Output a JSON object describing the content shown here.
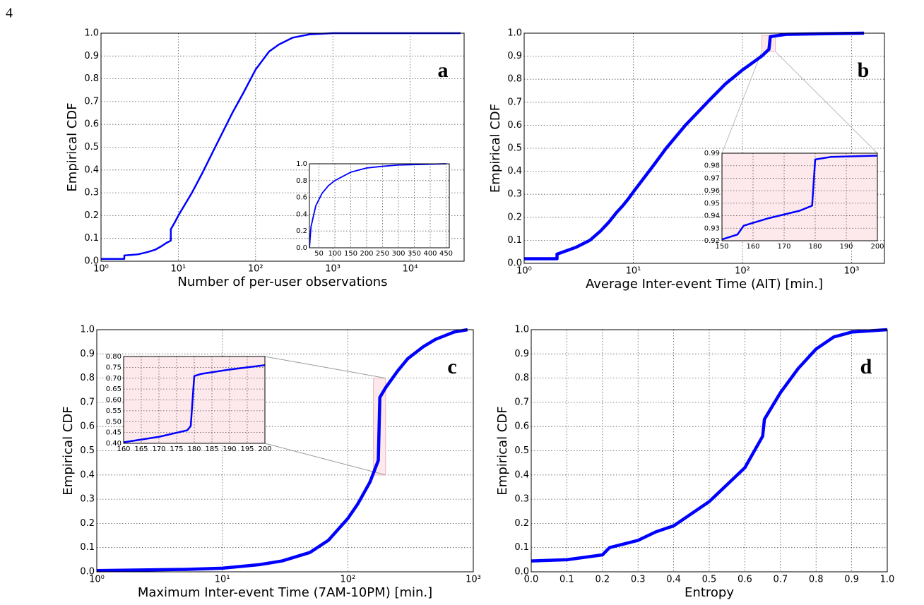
{
  "page_number": "4",
  "chart_data": [
    {
      "type": "line",
      "panel_label": "a",
      "x_label": "Number of per-user observations",
      "y_label": "Empirical CDF",
      "x_log": true,
      "grid": true,
      "xlim": [
        1,
        50000
      ],
      "xticks": [
        {
          "value": 1,
          "label": "10⁰"
        },
        {
          "value": 10,
          "label": "10¹"
        },
        {
          "value": 100,
          "label": "10²"
        },
        {
          "value": 1000,
          "label": "10³"
        },
        {
          "value": 10000,
          "label": "10⁴"
        }
      ],
      "ylim": [
        0,
        1
      ],
      "yticks": [
        {
          "value": 0,
          "label": "0.0"
        },
        0.1,
        0.2,
        0.3,
        0.4,
        0.5,
        0.6,
        0.7,
        0.8,
        0.9,
        {
          "value": 1,
          "label": "1.0"
        }
      ],
      "series": [
        {
          "color": "#0000ff",
          "x": [
            1,
            2,
            2,
            3,
            4,
            5,
            6,
            7,
            8,
            8,
            9,
            10,
            15,
            20,
            30,
            50,
            70,
            100,
            150,
            200,
            300,
            500,
            1000,
            45000
          ],
          "values": [
            0.01,
            0.01,
            0.025,
            0.03,
            0.04,
            0.05,
            0.065,
            0.08,
            0.09,
            0.14,
            0.17,
            0.2,
            0.3,
            0.38,
            0.5,
            0.65,
            0.74,
            0.84,
            0.92,
            0.95,
            0.98,
            0.995,
            1.0,
            1.0
          ]
        }
      ],
      "inset": {
        "type": "line",
        "x_log": false,
        "grid": true,
        "background": "#ffffff",
        "xlim": [
          20,
          460
        ],
        "xticks": [
          50,
          100,
          150,
          200,
          250,
          300,
          350,
          400,
          450
        ],
        "ylim": [
          0,
          1
        ],
        "yticks": [
          {
            "value": 0,
            "label": "0.0"
          },
          0.2,
          0.4,
          0.6,
          0.8,
          {
            "value": 1,
            "label": "1.0"
          }
        ],
        "series": [
          {
            "color": "#0000ff",
            "x": [
              20,
              25,
              40,
              60,
              80,
              100,
              150,
              200,
              250,
              300,
              350,
              450
            ],
            "values": [
              0.0,
              0.25,
              0.5,
              0.65,
              0.74,
              0.8,
              0.9,
              0.95,
              0.97,
              0.985,
              0.99,
              1.0
            ]
          }
        ]
      }
    },
    {
      "type": "line",
      "panel_label": "b",
      "x_label": "Average Inter-event Time (AIT) [min.]",
      "y_label": "Empirical CDF",
      "x_log": true,
      "grid": true,
      "xlim": [
        1,
        2000
      ],
      "xticks": [
        {
          "value": 1,
          "label": "10⁰"
        },
        {
          "value": 10,
          "label": "10¹"
        },
        {
          "value": 100,
          "label": "10²"
        },
        {
          "value": 1000,
          "label": "10³"
        }
      ],
      "ylim": [
        0,
        1
      ],
      "yticks": [
        {
          "value": 0,
          "label": "0.0"
        },
        0.1,
        0.2,
        0.3,
        0.4,
        0.5,
        0.6,
        0.7,
        0.8,
        0.9,
        {
          "value": 1,
          "label": "1.0"
        }
      ],
      "series": [
        {
          "color": "#0000ff",
          "x": [
            1,
            2,
            2,
            3,
            4,
            5,
            6,
            7,
            8,
            9,
            10,
            15,
            20,
            30,
            50,
            70,
            100,
            150,
            175,
            180,
            250,
            1300
          ],
          "values": [
            0.02,
            0.02,
            0.04,
            0.07,
            0.1,
            0.14,
            0.18,
            0.22,
            0.25,
            0.28,
            0.31,
            0.42,
            0.5,
            0.6,
            0.71,
            0.78,
            0.84,
            0.9,
            0.93,
            0.985,
            0.995,
            1.0
          ]
        }
      ],
      "inset": {
        "type": "line",
        "x_log": false,
        "grid": true,
        "background": "#fde8ec",
        "xlim": [
          150,
          200
        ],
        "xticks": [
          150,
          160,
          170,
          180,
          190,
          200
        ],
        "ylim": [
          0.92,
          0.99
        ],
        "yticks": [
          0.92,
          0.93,
          0.94,
          0.95,
          0.96,
          0.97,
          0.98,
          0.99
        ],
        "series": [
          {
            "color": "#0000ff",
            "x": [
              150,
              155,
              157,
              165,
              175,
              179,
              180,
              185,
              200
            ],
            "values": [
              0.921,
              0.925,
              0.932,
              0.938,
              0.944,
              0.948,
              0.985,
              0.987,
              0.988
            ]
          }
        ]
      }
    },
    {
      "type": "line",
      "panel_label": "c",
      "x_label": "Maximum Inter-event Time (7AM-10PM) [min.]",
      "y_label": "Empirical CDF",
      "x_log": true,
      "grid": true,
      "xlim": [
        1,
        1000
      ],
      "xticks": [
        {
          "value": 1,
          "label": "10⁰"
        },
        {
          "value": 10,
          "label": "10¹"
        },
        {
          "value": 100,
          "label": "10²"
        },
        {
          "value": 1000,
          "label": "10³"
        }
      ],
      "ylim": [
        0,
        1
      ],
      "yticks": [
        {
          "value": 0,
          "label": "0.0"
        },
        0.1,
        0.2,
        0.3,
        0.4,
        0.5,
        0.6,
        0.7,
        0.8,
        0.9,
        {
          "value": 1,
          "label": "1.0"
        }
      ],
      "series": [
        {
          "color": "#0000ff",
          "x": [
            1,
            5,
            10,
            20,
            30,
            50,
            70,
            100,
            120,
            150,
            175,
            180,
            200,
            250,
            300,
            400,
            500,
            700,
            900
          ],
          "values": [
            0.005,
            0.01,
            0.015,
            0.03,
            0.045,
            0.08,
            0.13,
            0.22,
            0.28,
            0.37,
            0.46,
            0.72,
            0.76,
            0.83,
            0.88,
            0.93,
            0.96,
            0.99,
            1.0
          ]
        }
      ],
      "inset": {
        "type": "line",
        "x_log": false,
        "grid": true,
        "background": "#fde8ec",
        "xlim": [
          160,
          200
        ],
        "xticks": [
          160,
          165,
          170,
          175,
          180,
          185,
          190,
          195,
          200
        ],
        "ylim": [
          0.4,
          0.8
        ],
        "yticks": [
          {
            "value": 0.4,
            "label": "0.40"
          },
          0.45,
          {
            "value": 0.5,
            "label": "0.50"
          },
          0.55,
          {
            "value": 0.6,
            "label": "0.60"
          },
          0.65,
          {
            "value": 0.7,
            "label": "0.70"
          },
          0.75,
          {
            "value": 0.8,
            "label": "0.80"
          }
        ],
        "series": [
          {
            "color": "#0000ff",
            "x": [
              160,
              170,
              178,
              179,
              180,
              182,
              190,
              200
            ],
            "values": [
              0.405,
              0.43,
              0.46,
              0.48,
              0.71,
              0.72,
              0.74,
              0.76
            ]
          }
        ]
      }
    },
    {
      "type": "line",
      "panel_label": "d",
      "x_label": "Entropy",
      "y_label": "Empirical CDF",
      "x_log": false,
      "grid": true,
      "xlim": [
        0,
        1
      ],
      "xticks": [
        {
          "value": 0,
          "label": "0.0"
        },
        0.1,
        0.2,
        0.3,
        0.4,
        0.5,
        0.6,
        0.7,
        0.8,
        0.9,
        {
          "value": 1,
          "label": "1.0"
        }
      ],
      "ylim": [
        0,
        1
      ],
      "yticks": [
        {
          "value": 0,
          "label": "0.0"
        },
        0.1,
        0.2,
        0.3,
        0.4,
        0.5,
        0.6,
        0.7,
        0.8,
        0.9,
        {
          "value": 1,
          "label": "1.0"
        }
      ],
      "series": [
        {
          "color": "#0000ff",
          "x": [
            0,
            0.1,
            0.2,
            0.22,
            0.3,
            0.35,
            0.4,
            0.5,
            0.6,
            0.65,
            0.655,
            0.7,
            0.75,
            0.8,
            0.85,
            0.9,
            1.0
          ],
          "values": [
            0.045,
            0.05,
            0.07,
            0.1,
            0.13,
            0.165,
            0.19,
            0.29,
            0.43,
            0.56,
            0.63,
            0.74,
            0.84,
            0.92,
            0.97,
            0.99,
            1.0
          ]
        }
      ]
    }
  ]
}
